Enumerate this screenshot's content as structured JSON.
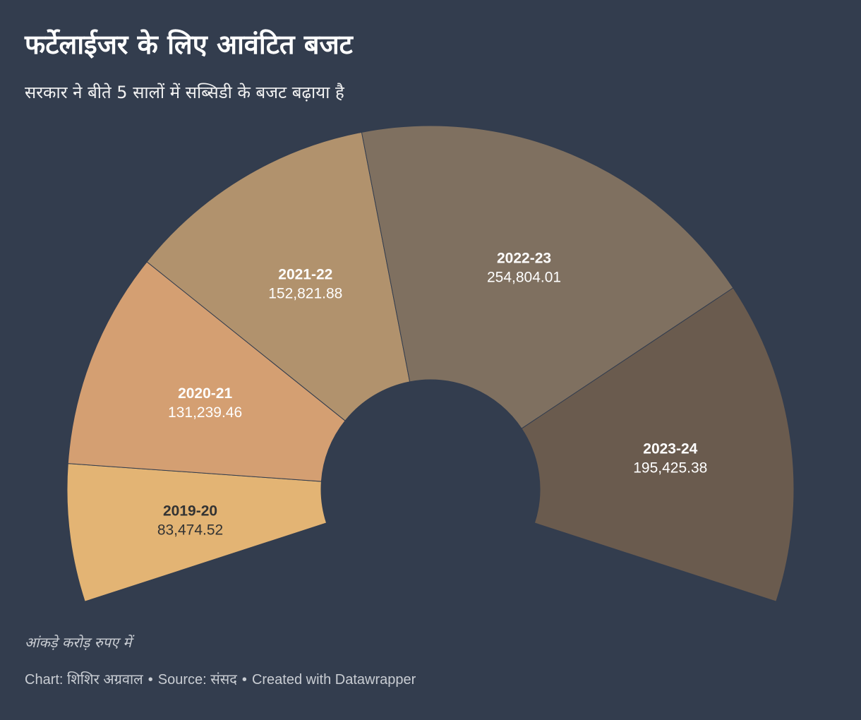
{
  "title": "फर्टेलाईजर के लिए आवंटित बजट",
  "subtitle": "सरकार ने बीते 5 सालों में सब्सिडी के बजट बढ़ाया है",
  "note": "आंकड़े करोड़ रुपए में",
  "footer": {
    "chart_by": "Chart: शिशिर अग्रवाल",
    "separator": "•",
    "source": "Source: संसद",
    "created_with": "Created with Datawrapper"
  },
  "chart_data": {
    "type": "pie",
    "variant": "half-donut",
    "categories": [
      "2019-20",
      "2020-21",
      "2021-22",
      "2022-23",
      "2023-24"
    ],
    "values": [
      83474.52,
      131239.46,
      152821.88,
      254804.01,
      195425.38
    ],
    "value_labels": [
      "83,474.52",
      "131,239.46",
      "152,821.88",
      "254,804.01",
      "195,425.38"
    ],
    "colors": [
      "#e3b474",
      "#d49f72",
      "#b1926d",
      "#7f7060",
      "#6a5b4e"
    ],
    "label_colors": [
      "#333333",
      "#ffffff",
      "#ffffff",
      "#ffffff",
      "#ffffff"
    ],
    "background": "#333d4e"
  }
}
